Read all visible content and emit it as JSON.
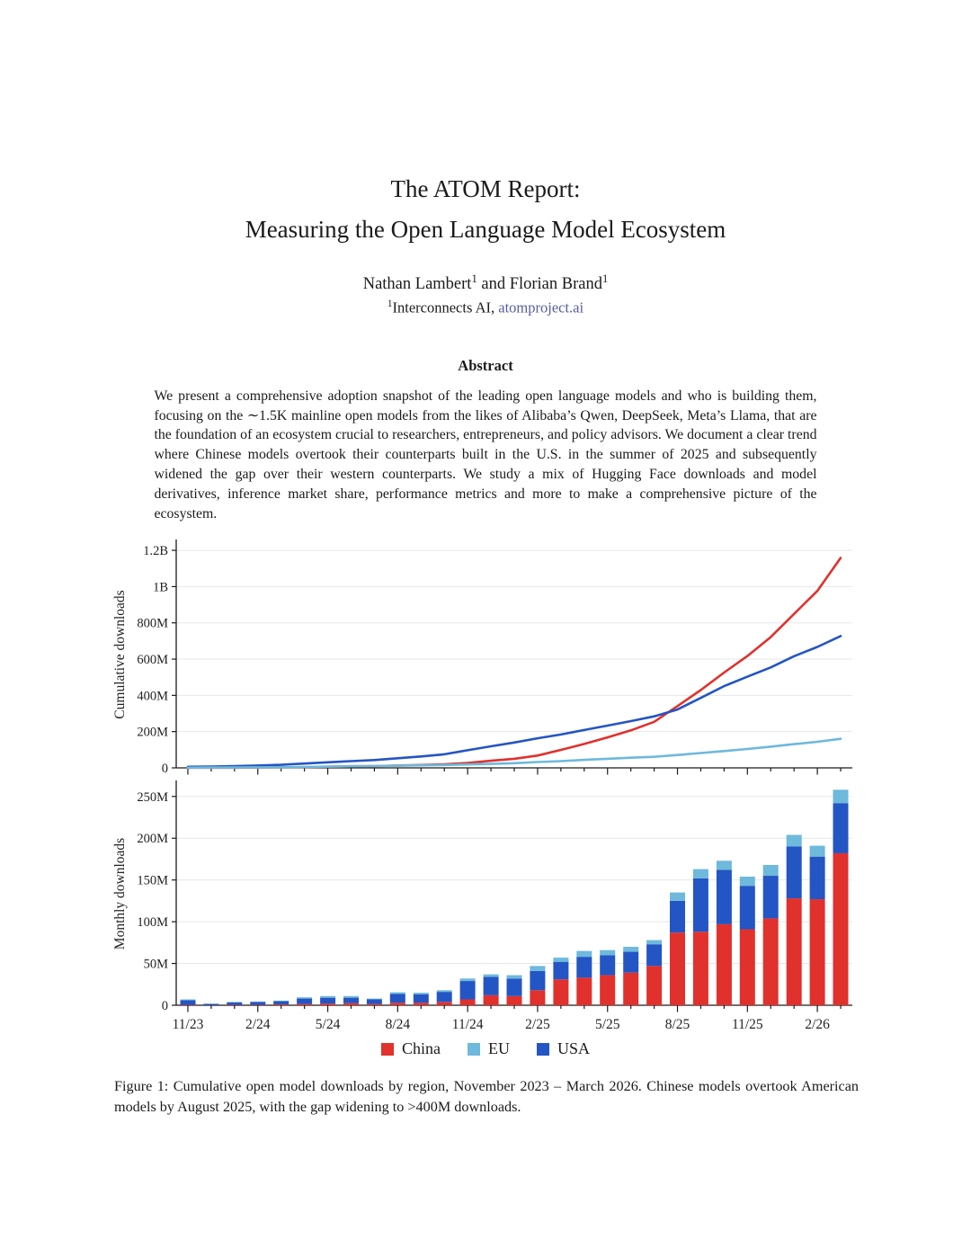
{
  "paper": {
    "title_line1": "The ATOM Report:",
    "title_line2": "Measuring the Open Language Model Ecosystem",
    "authors": {
      "author1": "Nathan Lambert",
      "sup1": "1",
      "connector": " and ",
      "author2": "Florian Brand",
      "sup2": "1"
    },
    "affiliation": {
      "sup": "1",
      "org": "Interconnects AI, ",
      "link": "atomproject.ai"
    },
    "abstract_heading": "Abstract",
    "abstract_text": "We present a comprehensive adoption snapshot of the leading open language models and who is building them, focusing on the ∼1.5K mainline open models from the likes of Alibaba’s Qwen, DeepSeek, Meta’s Llama, that are the foundation of an ecosystem crucial to researchers, entrepreneurs, and policy advisors. We document a clear trend where Chinese models overtook their counterparts built in the U.S. in the summer of 2025 and subsequently widened the gap over their western counterparts. We study a mix of Hugging Face downloads and model derivatives, inference market share, performance metrics and more to make a comprehensive picture of the ecosystem.",
    "figure_caption": "Figure 1: Cumulative open model downloads by region, November 2023 – March 2026. Chinese models overtook American models by August 2025, with the gap widening to >400M downloads."
  },
  "legend": [
    {
      "label": "China",
      "color": "#e0312d"
    },
    {
      "label": "EU",
      "color": "#6eb9dc"
    },
    {
      "label": "USA",
      "color": "#2455c4"
    }
  ],
  "colors": {
    "china": "#e0312d",
    "eu": "#6eb9dc",
    "usa": "#2455c4",
    "grid": "#e7e7ea",
    "axis": "#1b1b1b",
    "tick_text": "#222222",
    "link": "#575e9e"
  },
  "chart_data": [
    {
      "type": "line",
      "title": "",
      "xlabel": "",
      "ylabel": "Cumulative downloads",
      "units": "millions of downloads",
      "grid": true,
      "legend_position": "shared-below-figure",
      "ylim": [
        0,
        1250
      ],
      "yticks": [
        {
          "v": 0,
          "label": "0"
        },
        {
          "v": 200,
          "label": "200M"
        },
        {
          "v": 400,
          "label": "400M"
        },
        {
          "v": 600,
          "label": "600M"
        },
        {
          "v": 800,
          "label": "800M"
        },
        {
          "v": 1000,
          "label": "1B"
        },
        {
          "v": 1200,
          "label": "1.2B"
        }
      ],
      "x": [
        "11/23",
        "12/23",
        "1/24",
        "2/24",
        "3/24",
        "4/24",
        "5/24",
        "6/24",
        "7/24",
        "8/24",
        "9/24",
        "10/24",
        "11/24",
        "12/24",
        "1/25",
        "2/25",
        "3/25",
        "4/25",
        "5/25",
        "6/25",
        "7/25",
        "8/25",
        "9/25",
        "10/25",
        "11/25",
        "12/25",
        "1/26",
        "2/26",
        "3/26"
      ],
      "x_label_every": 3,
      "series": [
        {
          "name": "China",
          "color": "#e0312d",
          "values": [
            1,
            1,
            1,
            2,
            3,
            4,
            6,
            9,
            10,
            13,
            16,
            20,
            27,
            39,
            50,
            68,
            99,
            132,
            168,
            207,
            254,
            341,
            429,
            526,
            617,
            721,
            849,
            976,
            1158
          ]
        },
        {
          "name": "USA",
          "color": "#2455c4",
          "values": [
            6,
            7,
            10,
            13,
            17,
            24,
            31,
            37,
            43,
            53,
            63,
            75,
            97,
            119,
            140,
            163,
            184,
            209,
            233,
            258,
            284,
            322,
            386,
            451,
            503,
            554,
            616,
            667,
            727
          ]
        },
        {
          "name": "EU",
          "color": "#6eb9dc",
          "values": [
            1,
            2,
            2,
            3,
            3,
            5,
            7,
            9,
            10,
            12,
            14,
            16,
            19,
            22,
            26,
            32,
            37,
            44,
            50,
            56,
            61,
            71,
            82,
            93,
            104,
            117,
            131,
            144,
            160
          ]
        }
      ]
    },
    {
      "type": "bar",
      "stacked": true,
      "title": "",
      "xlabel": "",
      "ylabel": "Monthly downloads",
      "units": "millions of downloads",
      "grid": true,
      "legend_position": "shared-below-figure",
      "ylim": [
        0,
        267
      ],
      "yticks": [
        {
          "v": 0,
          "label": "0"
        },
        {
          "v": 50,
          "label": "50M"
        },
        {
          "v": 100,
          "label": "100M"
        },
        {
          "v": 150,
          "label": "150M"
        },
        {
          "v": 200,
          "label": "200M"
        },
        {
          "v": 250,
          "label": "250M"
        }
      ],
      "categories": [
        "11/23",
        "12/23",
        "1/24",
        "2/24",
        "3/24",
        "4/24",
        "5/24",
        "6/24",
        "7/24",
        "8/24",
        "9/24",
        "10/24",
        "11/24",
        "12/24",
        "1/25",
        "2/25",
        "3/25",
        "4/25",
        "5/25",
        "6/25",
        "7/25",
        "8/25",
        "9/25",
        "10/25",
        "11/25",
        "12/25",
        "1/26",
        "2/26",
        "3/26"
      ],
      "x_label_every": 3,
      "stack_order_bottom_to_top": [
        "China",
        "USA",
        "EU"
      ],
      "series": [
        {
          "name": "China",
          "color": "#e0312d",
          "values": [
            0.5,
            0.2,
            0.5,
            0.5,
            1,
            1.5,
            2,
            2.5,
            1.5,
            3,
            3,
            4,
            7,
            12,
            11,
            18,
            31,
            33,
            36,
            39,
            47,
            87,
            88,
            97,
            91,
            104,
            128,
            127,
            182
          ]
        },
        {
          "name": "USA",
          "color": "#2455c4",
          "values": [
            5.5,
            1.3,
            3,
            3.5,
            4,
            6.5,
            7,
            6.5,
            5.5,
            10.5,
            10,
            12,
            22,
            22,
            21,
            23,
            21,
            25,
            24,
            25,
            26,
            38,
            64,
            65,
            52,
            51,
            62,
            51,
            60
          ]
        },
        {
          "name": "EU",
          "color": "#6eb9dc",
          "values": [
            1,
            0.5,
            0.5,
            0.5,
            0.5,
            1.5,
            2,
            2,
            1,
            2,
            2,
            2,
            3,
            3,
            4,
            6,
            5,
            7,
            6,
            6,
            5,
            10,
            11,
            11,
            11,
            13,
            14,
            13,
            16
          ]
        }
      ]
    }
  ]
}
